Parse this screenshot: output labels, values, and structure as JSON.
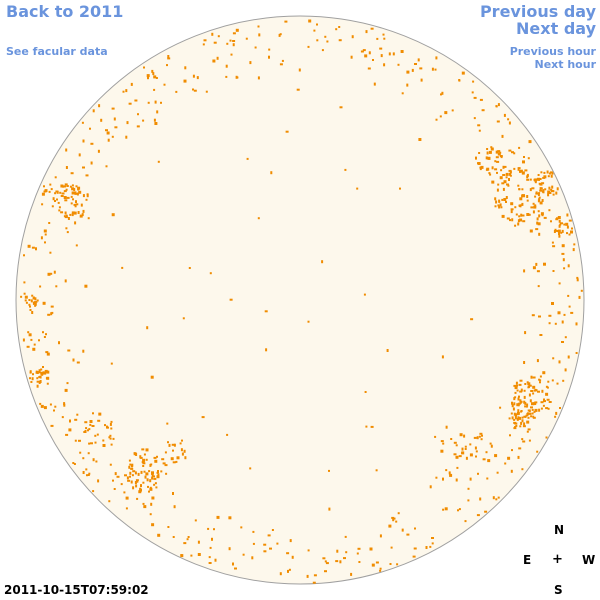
{
  "nav": {
    "back_label": "Back to 2011",
    "facular_label": "See facular data",
    "prev_day_label": "Previous day",
    "next_day_label": "Next day",
    "prev_hour_label": "Previous hour",
    "next_hour_label": "Next hour"
  },
  "compass": {
    "north": "N",
    "east": "E",
    "center": "+",
    "west": "W",
    "south": "S"
  },
  "timestamp": "2011-10-15T07:59:02",
  "colors": {
    "link": "#6a94dd",
    "disk_fill": "#fdf8ec",
    "disk_outline": "#a0a0a0",
    "facula": "#f08c00"
  }
}
